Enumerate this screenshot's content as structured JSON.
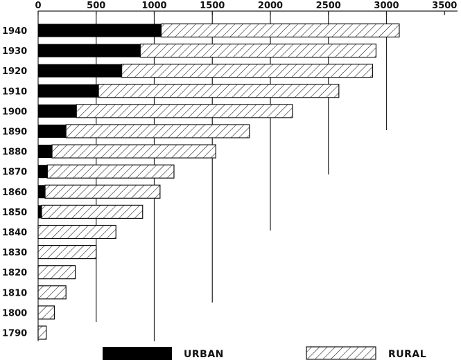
{
  "chart_data": {
    "type": "bar",
    "orientation": "horizontal",
    "stacked": true,
    "categories": [
      "1940",
      "1930",
      "1920",
      "1910",
      "1900",
      "1890",
      "1880",
      "1870",
      "1860",
      "1850",
      "1840",
      "1830",
      "1820",
      "1810",
      "1800",
      "1790"
    ],
    "series": [
      {
        "name": "URBAN",
        "pattern": "solid",
        "color": "#000000",
        "values": [
          1060,
          880,
          720,
          520,
          330,
          240,
          120,
          80,
          60,
          30,
          0,
          0,
          0,
          0,
          0,
          0
        ]
      },
      {
        "name": "RURAL",
        "pattern": "hatched",
        "color": "#000000",
        "values": [
          2050,
          2030,
          2160,
          2070,
          1860,
          1580,
          1410,
          1090,
          990,
          870,
          670,
          500,
          320,
          240,
          140,
          70
        ]
      }
    ],
    "x_ticks": [
      0,
      500,
      1000,
      1500,
      2000,
      2500,
      3000,
      3500
    ],
    "xlim": [
      0,
      3500
    ],
    "x_axis_position": "top",
    "legend_position": "bottom",
    "grid": "partial vertical lines"
  }
}
